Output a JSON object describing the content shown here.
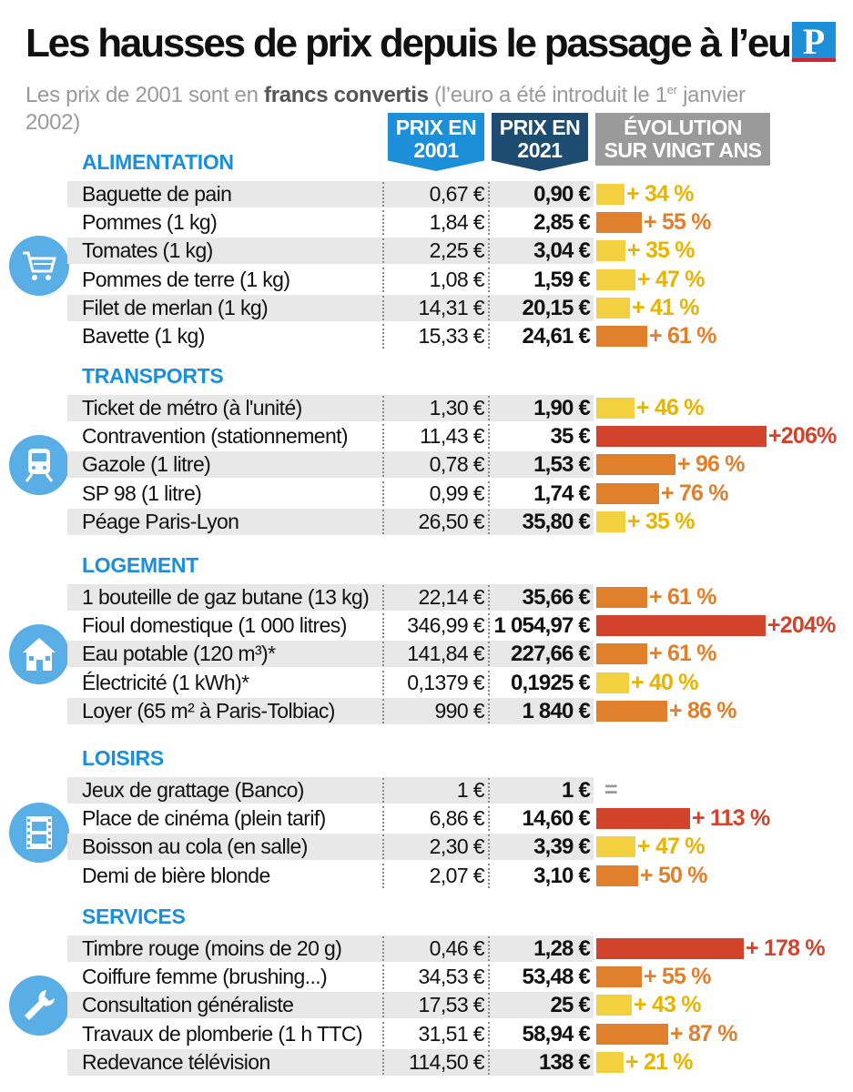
{
  "title": "Les hausses de prix depuis le passage à l’euro",
  "logo": "P",
  "subtitle": {
    "before": "Les prix de 2001 sont en ",
    "bold": "francs convertis",
    "after1": " (l’euro a été introduit le 1",
    "sup": "er",
    "after2": " janvier 2002)"
  },
  "headers": {
    "p2001": [
      "PRIX EN",
      "2001"
    ],
    "p2021": [
      "PRIX EN",
      "2021"
    ],
    "evol": [
      "ÉVOLUTION",
      "SUR VINGT ANS"
    ]
  },
  "colors": {
    "yellow": "#f2d03f",
    "orange": "#e07f2c",
    "red": "#d1432b",
    "blue": "#1c8fd8",
    "navy": "#1e4b70",
    "grey": "#9a9a9a",
    "yellow_text": "#e8b400"
  },
  "chart_data": {
    "type": "bar",
    "title": "Les hausses de prix depuis le passage à l’euro",
    "value_unit": "%",
    "sections": [
      {
        "name": "ALIMENTATION",
        "icon": "shopping-cart-icon",
        "items": [
          {
            "label": "Baguette de pain",
            "p2001": "0,67 €",
            "p2021": "0,90 €",
            "evolution": 34,
            "evolution_label": "+ 34 %"
          },
          {
            "label": "Pommes (1 kg)",
            "p2001": "1,84 €",
            "p2021": "2,85 €",
            "evolution": 55,
            "evolution_label": "+ 55 %"
          },
          {
            "label": "Tomates (1 kg)",
            "p2001": "2,25 €",
            "p2021": "3,04 €",
            "evolution": 35,
            "evolution_label": "+ 35 %"
          },
          {
            "label": "Pommes de terre (1 kg)",
            "p2001": "1,08 €",
            "p2021": "1,59 €",
            "evolution": 47,
            "evolution_label": "+ 47 %"
          },
          {
            "label": "Filet de merlan (1 kg)",
            "p2001": "14,31 €",
            "p2021": "20,15 €",
            "evolution": 41,
            "evolution_label": "+ 41 %"
          },
          {
            "label": "Bavette (1 kg)",
            "p2001": "15,33 €",
            "p2021": "24,61 €",
            "evolution": 61,
            "evolution_label": "+ 61 %"
          }
        ]
      },
      {
        "name": "TRANSPORTS",
        "icon": "train-icon",
        "items": [
          {
            "label": "Ticket de métro (à l'unité)",
            "p2001": "1,30 €",
            "p2021": "1,90 €",
            "evolution": 46,
            "evolution_label": "+ 46 %"
          },
          {
            "label": "Contravention (stationnement)",
            "p2001": "11,43 €",
            "p2021": "35 €",
            "evolution": 206,
            "evolution_label": "+206%"
          },
          {
            "label": "Gazole (1 litre)",
            "p2001": "0,78 €",
            "p2021": "1,53 €",
            "evolution": 96,
            "evolution_label": "+ 96 %"
          },
          {
            "label": "SP 98 (1 litre)",
            "p2001": "0,99 €",
            "p2021": "1,74 €",
            "evolution": 76,
            "evolution_label": "+ 76 %"
          },
          {
            "label": "Péage Paris-Lyon",
            "p2001": "26,50 €",
            "p2021": "35,80 €",
            "evolution": 35,
            "evolution_label": "+ 35 %"
          }
        ]
      },
      {
        "name": "LOGEMENT",
        "icon": "house-icon",
        "items": [
          {
            "label": "1 bouteille de gaz butane (13 kg)",
            "p2001": "22,14 €",
            "p2021": "35,66 €",
            "evolution": 61,
            "evolution_label": "+ 61 %"
          },
          {
            "label": "Fioul domestique (1 000 litres)",
            "p2001": "346,99 €",
            "p2021": "1 054,97 €",
            "evolution": 204,
            "evolution_label": "+204%"
          },
          {
            "label": "Eau potable (120 m³)*",
            "p2001": "141,84 €",
            "p2021": "227,66 €",
            "evolution": 61,
            "evolution_label": "+ 61 %"
          },
          {
            "label": "Électricité (1 kWh)*",
            "p2001": "0,1379 €",
            "p2021": "0,1925 €",
            "evolution": 40,
            "evolution_label": "+ 40 %"
          },
          {
            "label": "Loyer (65 m² à Paris-Tolbiac)",
            "p2001": "990 €",
            "p2021": "1 840 €",
            "evolution": 86,
            "evolution_label": "+ 86 %"
          }
        ]
      },
      {
        "name": "LOISIRS",
        "icon": "film-icon",
        "items": [
          {
            "label": "Jeux de grattage (Banco)",
            "p2001": "1 €",
            "p2021": "1 €",
            "evolution": 0,
            "evolution_label": "="
          },
          {
            "label": "Place de cinéma (plein tarif)",
            "p2001": "6,86 €",
            "p2021": "14,60 €",
            "evolution": 113,
            "evolution_label": "+ 113 %"
          },
          {
            "label": "Boisson au cola (en salle)",
            "p2001": "2,30 €",
            "p2021": "3,39 €",
            "evolution": 47,
            "evolution_label": "+ 47 %"
          },
          {
            "label": "Demi de bière blonde",
            "p2001": "2,07 €",
            "p2021": "3,10 €",
            "evolution": 50,
            "evolution_label": "+ 50 %"
          }
        ]
      },
      {
        "name": "SERVICES",
        "icon": "wrench-icon",
        "items": [
          {
            "label": "Timbre rouge (moins de 20 g)",
            "p2001": "0,46 €",
            "p2021": "1,28 €",
            "evolution": 178,
            "evolution_label": "+ 178 %"
          },
          {
            "label": "Coiffure femme (brushing...)",
            "p2001": "34,53 €",
            "p2021": "53,48 €",
            "evolution": 55,
            "evolution_label": "+ 55 %"
          },
          {
            "label": "Consultation généraliste",
            "p2001": "17,53 €",
            "p2021": "25 €",
            "evolution": 43,
            "evolution_label": "+ 43 %"
          },
          {
            "label": "Travaux de plomberie (1 h TTC)",
            "p2001": "31,51 €",
            "p2021": "58,94 €",
            "evolution": 87,
            "evolution_label": "+ 87 %"
          },
          {
            "label": "Redevance télévision",
            "p2001": "114,50 €",
            "p2021": "138 €",
            "evolution": 21,
            "evolution_label": "+ 21 %"
          }
        ]
      }
    ]
  }
}
